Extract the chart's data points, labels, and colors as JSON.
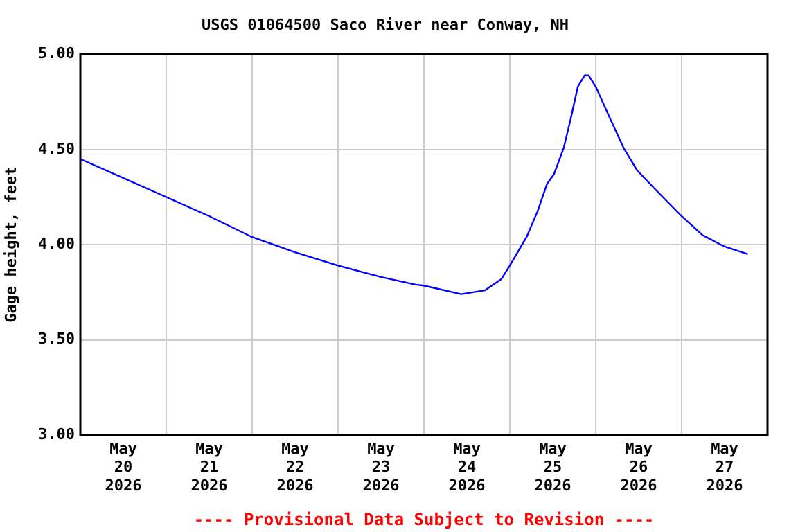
{
  "chart_data": {
    "type": "line",
    "title": "USGS 01064500 Saco River near Conway, NH",
    "ylabel": "Gage height, feet",
    "annotations": [
      "---- Provisional Data Subject to Revision ----"
    ],
    "x": [
      "2026-05-20T00:00",
      "2026-05-21T00:00",
      "2026-05-21T12:00",
      "2026-05-22T00:00",
      "2026-05-22T12:00",
      "2026-05-23T00:00",
      "2026-05-23T12:00",
      "2026-05-23T21:40",
      "2026-05-24T00:00",
      "2026-05-24T10:25",
      "2026-05-24T17:00",
      "2026-05-24T21:40",
      "2026-05-25T00:00",
      "2026-05-25T04:40",
      "2026-05-25T07:45",
      "2026-05-25T10:25",
      "2026-05-25T12:20",
      "2026-05-25T15:05",
      "2026-05-25T17:00",
      "2026-05-25T19:00",
      "2026-05-25T20:55",
      "2026-05-25T22:00",
      "2026-05-26T00:00",
      "2026-05-26T03:50",
      "2026-05-26T07:45",
      "2026-05-26T11:35",
      "2026-05-26T16:40",
      "2026-05-27T00:00",
      "2026-05-27T05:50",
      "2026-05-27T12:00",
      "2026-05-27T18:30"
    ],
    "series": [
      {
        "color": "#0000ff",
        "values": [
          4.45,
          4.25,
          4.15,
          4.04,
          3.96,
          3.89,
          3.83,
          3.79,
          3.785,
          3.74,
          3.76,
          3.82,
          3.89,
          4.04,
          4.175,
          4.32,
          4.37,
          4.51,
          4.66,
          4.83,
          4.89,
          4.89,
          4.83,
          4.67,
          4.51,
          4.39,
          4.29,
          4.15,
          4.05,
          3.99,
          3.95
        ]
      }
    ],
    "xlim": [
      "2026-05-20T00:00",
      "2026-05-28T00:00"
    ],
    "xticks": [
      {
        "value": "2026-05-20T12:00",
        "label": "May 20 2026"
      },
      {
        "value": "2026-05-21T00:00",
        "label": null
      },
      {
        "value": "2026-05-21T12:00",
        "label": "May 21 2026"
      },
      {
        "value": "2026-05-22T00:00",
        "label": null
      },
      {
        "value": "2026-05-22T12:00",
        "label": "May 22 2026"
      },
      {
        "value": "2026-05-23T00:00",
        "label": null
      },
      {
        "value": "2026-05-23T12:00",
        "label": "May 23 2026"
      },
      {
        "value": "2026-05-24T00:00",
        "label": null
      },
      {
        "value": "2026-05-24T12:00",
        "label": "May 24 2026"
      },
      {
        "value": "2026-05-25T00:00",
        "label": null
      },
      {
        "value": "2026-05-25T12:00",
        "label": "May 25 2026"
      },
      {
        "value": "2026-05-26T00:00",
        "label": null
      },
      {
        "value": "2026-05-26T12:00",
        "label": "May 26 2026"
      },
      {
        "value": "2026-05-27T00:00",
        "label": null
      },
      {
        "value": "2026-05-27T12:00",
        "label": "May 27 2026"
      }
    ],
    "ylim": [
      3,
      5
    ],
    "yticks": [
      {
        "value": 3,
        "label": "3.00"
      },
      {
        "value": 3.5,
        "label": "3.50"
      },
      {
        "value": 4,
        "label": "4.00"
      },
      {
        "value": 4.5,
        "label": "4.50"
      },
      {
        "value": 5,
        "label": "5.00"
      }
    ],
    "grid": true,
    "legend": false,
    "marker": "none",
    "line_style": "solid"
  }
}
